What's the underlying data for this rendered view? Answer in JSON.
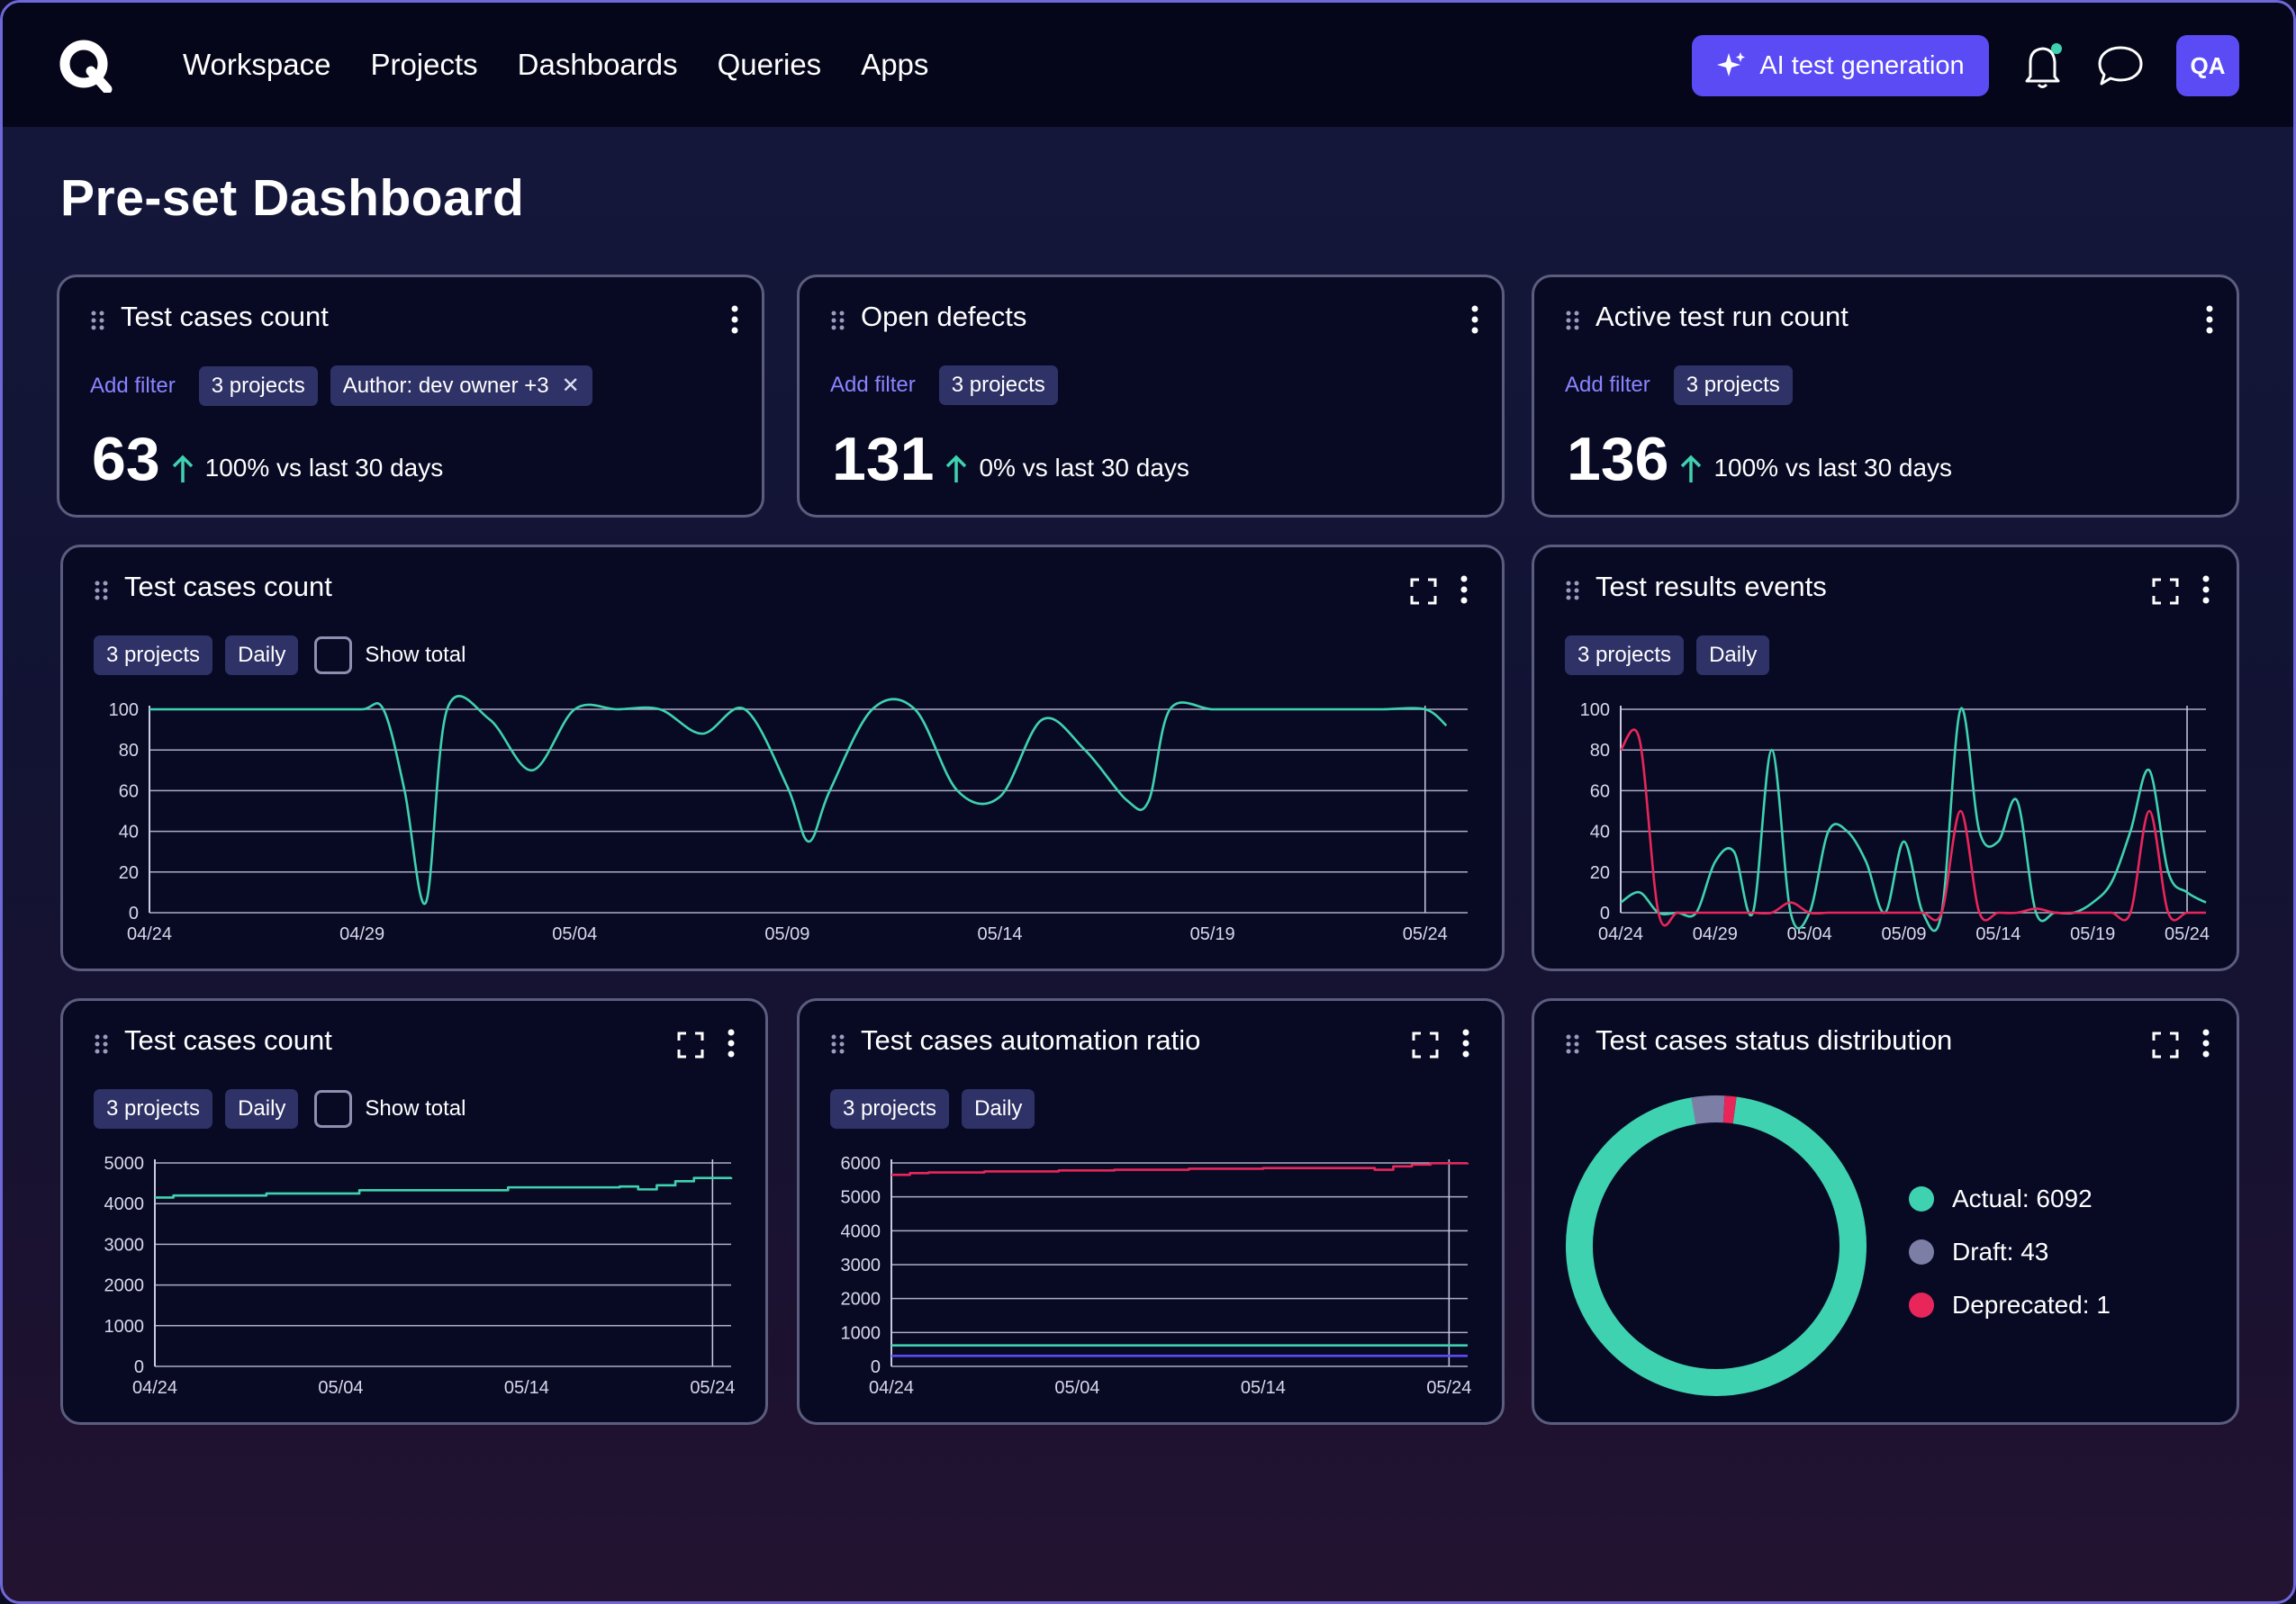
{
  "nav": {
    "items": [
      "Workspace",
      "Projects",
      "Dashboards",
      "Queries",
      "Apps"
    ],
    "ai_button": "AI test generation",
    "avatar": "QA"
  },
  "page": {
    "title": "Pre-set Dashboard"
  },
  "colors": {
    "accent": "#5b4bf5",
    "teal": "#3fd2b0",
    "red": "#e8265a",
    "grey": "#7d7ea6",
    "link": "#8c83ff"
  },
  "metric_cards": [
    {
      "title": "Test cases count",
      "add_filter": "Add filter",
      "chips": [
        "3 projects",
        "Author: dev owner +3"
      ],
      "value": "63",
      "change": "100% vs last 30 days"
    },
    {
      "title": "Open defects",
      "add_filter": "Add filter",
      "chips": [
        "3 projects"
      ],
      "value": "131",
      "change": "0% vs last 30 days"
    },
    {
      "title": "Active test run count",
      "add_filter": "Add filter",
      "chips": [
        "3 projects"
      ],
      "value": "136",
      "change": "100% vs last 30 days"
    }
  ],
  "widgets": {
    "tc_count_wide": {
      "title": "Test cases count",
      "chips": [
        "3 projects",
        "Daily"
      ],
      "show_total": "Show total"
    },
    "results_events": {
      "title": "Test results events",
      "chips": [
        "3 projects",
        "Daily"
      ]
    },
    "tc_count_small": {
      "title": "Test cases count",
      "chips": [
        "3 projects",
        "Daily"
      ],
      "show_total": "Show total"
    },
    "automation_ratio": {
      "title": "Test cases automation ratio",
      "chips": [
        "3 projects",
        "Daily"
      ]
    },
    "status_distribution": {
      "title": "Test cases status distribution",
      "legend": [
        "Actual: 6092",
        "Draft: 43",
        "Deprecated: 1"
      ]
    }
  },
  "chart_data": [
    {
      "id": "tc_count_wide",
      "type": "line",
      "title": "Test cases count",
      "x_ticks": [
        "04/24",
        "04/29",
        "05/04",
        "05/09",
        "05/14",
        "05/19",
        "05/24"
      ],
      "y_ticks": [
        0,
        20,
        40,
        60,
        80,
        100
      ],
      "ylim": [
        0,
        100
      ],
      "xlim": [
        0,
        31
      ],
      "vline": 30,
      "grid": true,
      "series": [
        {
          "color": "#3fd2b0",
          "x": [
            0,
            1,
            2,
            3,
            4,
            5,
            5.5,
            6,
            6.5,
            7,
            8,
            9,
            10,
            11,
            12,
            13,
            14,
            15,
            15.5,
            16,
            17,
            18,
            19,
            20,
            21,
            22,
            23,
            23.5,
            24,
            25,
            26,
            27,
            28,
            29,
            30,
            30.5
          ],
          "y": [
            100,
            100,
            100,
            100,
            100,
            100,
            100,
            60,
            5,
            100,
            95,
            70,
            100,
            100,
            100,
            88,
            100,
            62,
            35,
            60,
            100,
            100,
            60,
            57,
            95,
            80,
            55,
            55,
            100,
            100,
            100,
            100,
            100,
            100,
            100,
            92
          ]
        }
      ]
    },
    {
      "id": "results_events",
      "type": "line",
      "title": "Test results events",
      "x_ticks": [
        "04/24",
        "04/29",
        "05/04",
        "05/09",
        "05/14",
        "05/19",
        "05/24"
      ],
      "y_ticks": [
        0,
        20,
        40,
        60,
        80,
        100
      ],
      "ylim": [
        0,
        100
      ],
      "xlim": [
        0,
        31
      ],
      "vline": 30,
      "grid": true,
      "series": [
        {
          "color": "#3fd2b0",
          "x": [
            0,
            1,
            2,
            3,
            4,
            5,
            6,
            7,
            8,
            9,
            10,
            11,
            12,
            13,
            14,
            15,
            16,
            17,
            18,
            19,
            20,
            21,
            22,
            23,
            24,
            25,
            26,
            27,
            28,
            29,
            30,
            31
          ],
          "y": [
            5,
            10,
            0,
            0,
            0,
            25,
            30,
            0,
            80,
            0,
            0,
            40,
            40,
            25,
            0,
            35,
            0,
            0,
            100,
            40,
            35,
            55,
            0,
            0,
            0,
            5,
            15,
            40,
            70,
            20,
            10,
            5
          ]
        },
        {
          "color": "#e8265a",
          "x": [
            0,
            1,
            2,
            3,
            4,
            5,
            6,
            7,
            8,
            9,
            10,
            11,
            12,
            13,
            14,
            15,
            16,
            17,
            18,
            19,
            20,
            21,
            22,
            23,
            24,
            25,
            26,
            27,
            28,
            29,
            30,
            31
          ],
          "y": [
            80,
            85,
            0,
            0,
            0,
            0,
            0,
            0,
            0,
            5,
            0,
            0,
            0,
            0,
            0,
            0,
            0,
            0,
            50,
            0,
            0,
            0,
            2,
            0,
            0,
            0,
            0,
            0,
            50,
            0,
            0,
            0
          ]
        }
      ]
    },
    {
      "id": "tc_count_small",
      "type": "line",
      "title": "Test cases count",
      "x_ticks": [
        "04/24",
        "05/04",
        "05/14",
        "05/24"
      ],
      "y_ticks": [
        0,
        1000,
        2000,
        3000,
        4000,
        5000
      ],
      "ylim": [
        0,
        5000
      ],
      "xlim": [
        0,
        31
      ],
      "vline": 30,
      "grid": true,
      "series": [
        {
          "color": "#3fd2b0",
          "step": true,
          "x": [
            0,
            1,
            6,
            11,
            19,
            25,
            26,
            27,
            28,
            29,
            31
          ],
          "y": [
            4150,
            4200,
            4250,
            4330,
            4400,
            4420,
            4350,
            4450,
            4550,
            4630,
            4650
          ]
        }
      ]
    },
    {
      "id": "automation_ratio",
      "type": "line",
      "title": "Test cases automation ratio",
      "x_ticks": [
        "04/24",
        "05/04",
        "05/14",
        "05/24"
      ],
      "y_ticks": [
        0,
        1000,
        2000,
        3000,
        4000,
        5000,
        6000
      ],
      "ylim": [
        0,
        6000
      ],
      "xlim": [
        0,
        31
      ],
      "vline": 30,
      "grid": true,
      "series": [
        {
          "color": "#e8265a",
          "step": true,
          "x": [
            0,
            1,
            2,
            5,
            9,
            12,
            16,
            20,
            26,
            27,
            28,
            29,
            31
          ],
          "y": [
            5650,
            5700,
            5720,
            5750,
            5780,
            5800,
            5830,
            5850,
            5800,
            5900,
            5950,
            5990,
            6000
          ]
        },
        {
          "color": "#3fd2b0",
          "x": [
            0,
            31
          ],
          "y": [
            620,
            620
          ]
        },
        {
          "color": "#5b4bf5",
          "x": [
            0,
            31
          ],
          "y": [
            310,
            310
          ]
        }
      ]
    },
    {
      "id": "status_distribution",
      "type": "pie",
      "title": "Test cases status distribution",
      "labels": [
        "Actual",
        "Draft",
        "Deprecated"
      ],
      "values": [
        6092,
        43,
        1
      ],
      "colors": [
        "#3fd2b0",
        "#7d7ea6",
        "#e8265a"
      ]
    }
  ]
}
